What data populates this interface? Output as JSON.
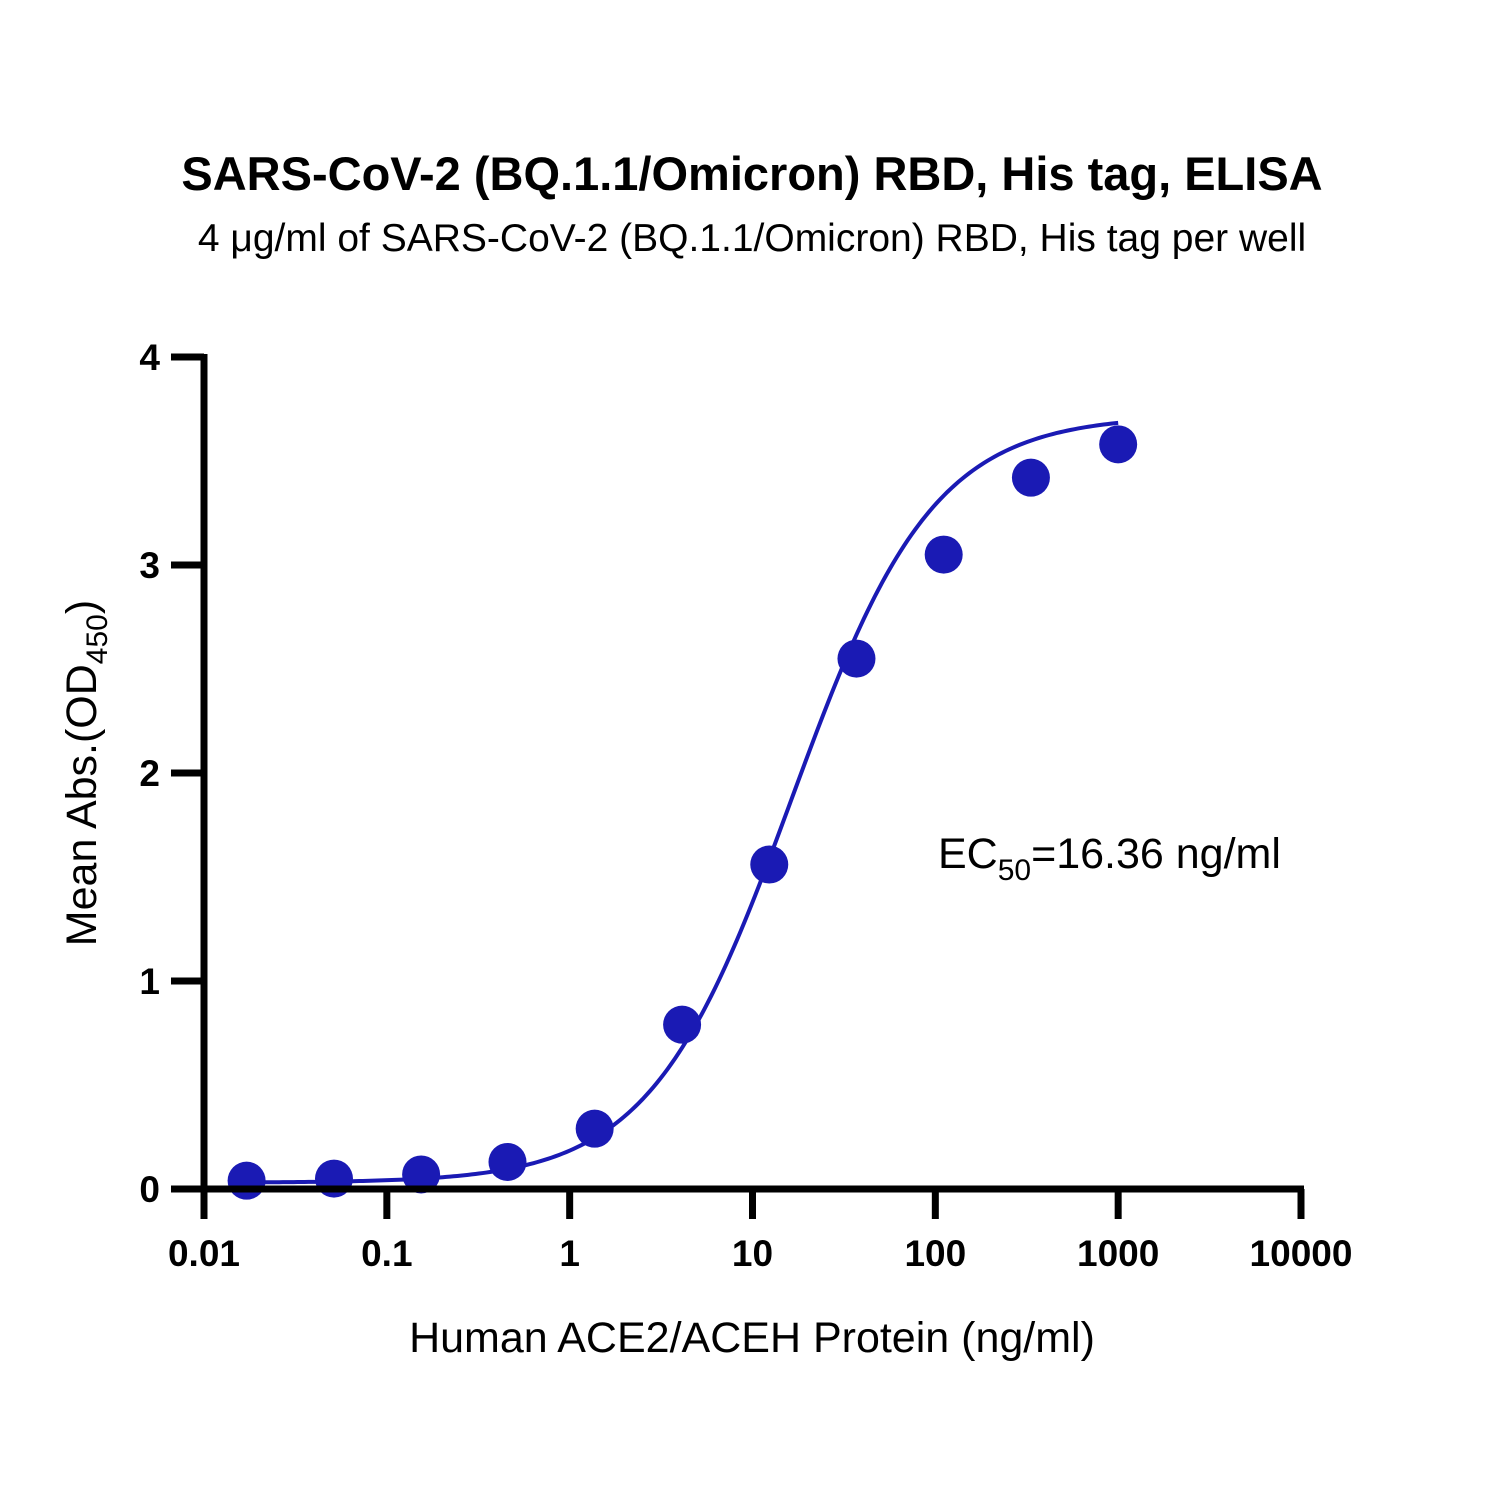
{
  "chart_data": {
    "type": "scatter",
    "title": "SARS-CoV-2 (BQ.1.1/Omicron) RBD, His tag, ELISA",
    "subtitle": "4 μg/ml of SARS-CoV-2 (BQ.1.1/Omicron) RBD, His tag per well",
    "xlabel": "Human ACE2/ACEH Protein (ng/ml)",
    "ylabel": {
      "main": "Mean Abs.(OD",
      "sub": "450",
      "close": ")"
    },
    "x_scale": "log",
    "xlim": [
      0.01,
      10000
    ],
    "ylim": [
      0,
      4
    ],
    "x_ticks": [
      {
        "value": 0.01,
        "label": "0.01"
      },
      {
        "value": 0.1,
        "label": "0.1"
      },
      {
        "value": 1,
        "label": "1"
      },
      {
        "value": 10,
        "label": "10"
      },
      {
        "value": 100,
        "label": "100"
      },
      {
        "value": 1000,
        "label": "1000"
      },
      {
        "value": 10000,
        "label": "10000"
      }
    ],
    "y_ticks": [
      {
        "value": 0,
        "label": "0"
      },
      {
        "value": 1,
        "label": "1"
      },
      {
        "value": 2,
        "label": "2"
      },
      {
        "value": 3,
        "label": "3"
      },
      {
        "value": 4,
        "label": "4"
      }
    ],
    "grid": false,
    "series": [
      {
        "color": "#1a1ab4",
        "x": [
          0.0171,
          0.0514,
          0.154,
          0.457,
          1.37,
          4.12,
          12.35,
          37.04,
          111.1,
          333.3,
          1000
        ],
        "y": [
          0.04,
          0.05,
          0.07,
          0.13,
          0.29,
          0.79,
          1.56,
          2.55,
          3.05,
          3.42,
          3.58
        ]
      }
    ],
    "fit_curve": {
      "model": "4PL",
      "bottom": 0.03,
      "top": 3.72,
      "ec50": 16.36,
      "hill": 1.12,
      "color": "#1a1ab4"
    },
    "annotation": {
      "prefix": "EC",
      "sub": "50",
      "suffix": "=16.36 ng/ml"
    }
  }
}
